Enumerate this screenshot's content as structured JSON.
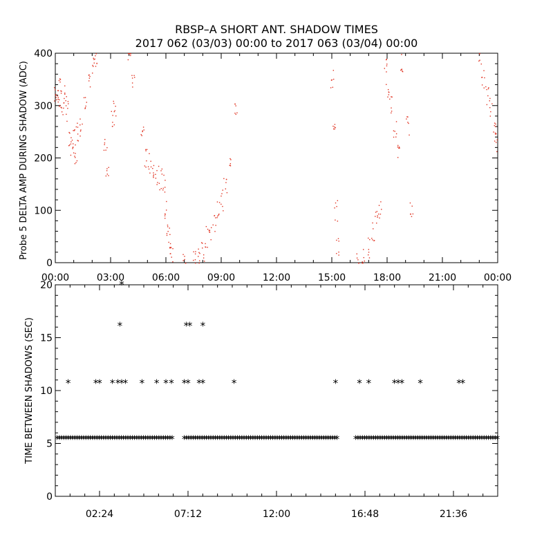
{
  "header": {
    "title_line1": "RBSP–A SHORT ANT. SHADOW TIMES",
    "title_line2": "2017 062 (03/03) 00:00 to 2017 063 (03/04) 00:00"
  },
  "colors": {
    "top_points": "#e0301e",
    "bottom_points": "#000000",
    "axes": "#000000"
  },
  "chart_data": [
    {
      "type": "scatter",
      "title": "RBSP–A SHORT ANT. SHADOW TIMES",
      "xlabel": "",
      "ylabel": "Probe 5 DELTA AMP DURING SHADOW (ADC)",
      "xlim": [
        "00:00",
        "24:00"
      ],
      "ylim": [
        0,
        400
      ],
      "xticks": [
        "00:00",
        "03:00",
        "06:00",
        "09:00",
        "12:00",
        "15:00",
        "18:00",
        "21:00",
        "00:00"
      ],
      "yticks": [
        "0",
        "100",
        "200",
        "300",
        "400"
      ],
      "grid": false,
      "series": [
        {
          "description_x_hours_y_adc": "approximate clusters of red dots",
          "points": [
            [
              0.0,
              320
            ],
            [
              0.1,
              330
            ],
            [
              0.2,
              310
            ],
            [
              0.3,
              335
            ],
            [
              0.4,
              300
            ],
            [
              0.5,
              325
            ],
            [
              0.6,
              290
            ],
            [
              0.8,
              230
            ],
            [
              0.9,
              220
            ],
            [
              1.0,
              240
            ],
            [
              1.1,
              210
            ],
            [
              1.2,
              250
            ],
            [
              1.4,
              260
            ],
            [
              1.6,
              300
            ],
            [
              1.8,
              340
            ],
            [
              2.0,
              380
            ],
            [
              2.2,
              395
            ],
            [
              2.7,
              220
            ],
            [
              2.8,
              180
            ],
            [
              3.1,
              280
            ],
            [
              3.2,
              300
            ],
            [
              4.0,
              400
            ],
            [
              4.2,
              350
            ],
            [
              4.7,
              250
            ],
            [
              4.9,
              200
            ],
            [
              5.1,
              190
            ],
            [
              5.3,
              180
            ],
            [
              5.5,
              170
            ],
            [
              5.7,
              160
            ],
            [
              5.9,
              150
            ],
            [
              6.0,
              100
            ],
            [
              6.1,
              60
            ],
            [
              6.2,
              40
            ],
            [
              6.3,
              20
            ],
            [
              7.0,
              5
            ],
            [
              7.5,
              10
            ],
            [
              7.8,
              15
            ],
            [
              8.0,
              20
            ],
            [
              8.2,
              50
            ],
            [
              8.4,
              60
            ],
            [
              8.6,
              80
            ],
            [
              8.8,
              100
            ],
            [
              9.0,
              120
            ],
            [
              9.2,
              150
            ],
            [
              9.5,
              200
            ],
            [
              9.8,
              300
            ],
            [
              15.0,
              350
            ],
            [
              15.1,
              250
            ],
            [
              15.2,
              100
            ],
            [
              15.3,
              30
            ],
            [
              16.4,
              5
            ],
            [
              16.7,
              10
            ],
            [
              17.0,
              30
            ],
            [
              17.2,
              60
            ],
            [
              17.4,
              80
            ],
            [
              17.6,
              100
            ],
            [
              17.9,
              380
            ],
            [
              18.0,
              330
            ],
            [
              18.2,
              300
            ],
            [
              18.4,
              260
            ],
            [
              18.6,
              220
            ],
            [
              18.8,
              380
            ],
            [
              19.1,
              260
            ],
            [
              19.3,
              100
            ],
            [
              23.0,
              400
            ],
            [
              23.2,
              350
            ],
            [
              23.4,
              320
            ],
            [
              23.6,
              300
            ],
            [
              23.8,
              250
            ],
            [
              23.9,
              230
            ]
          ]
        }
      ]
    },
    {
      "type": "scatter",
      "title": "",
      "xlabel": "",
      "ylabel": "TIME BETWEEN SHADOWS (SEC)",
      "xlim": [
        "00:00",
        "24:00"
      ],
      "ylim": [
        0,
        20
      ],
      "xticks": [
        "02:24",
        "07:12",
        "12:00",
        "16:48",
        "21:36"
      ],
      "yticks": [
        "0",
        "5",
        "10",
        "15",
        "20"
      ],
      "grid": false,
      "marker": "*",
      "series": [
        {
          "name": "",
          "baseline_value": 5.4,
          "baseline_segments_hours": [
            [
              0.1,
              6.4
            ],
            [
              7.0,
              15.3
            ],
            [
              16.3,
              16.8
            ],
            [
              16.9,
              24.0
            ]
          ],
          "points": [
            [
              0.7,
              10.7
            ],
            [
              2.2,
              10.7
            ],
            [
              2.4,
              10.7
            ],
            [
              3.1,
              10.7
            ],
            [
              3.4,
              10.7
            ],
            [
              3.6,
              10.7
            ],
            [
              3.8,
              10.7
            ],
            [
              3.5,
              16.1
            ],
            [
              3.6,
              20.0
            ],
            [
              4.7,
              10.7
            ],
            [
              5.5,
              10.7
            ],
            [
              6.0,
              10.7
            ],
            [
              6.3,
              10.7
            ],
            [
              7.0,
              10.7
            ],
            [
              7.2,
              10.7
            ],
            [
              7.1,
              16.1
            ],
            [
              7.3,
              16.1
            ],
            [
              7.8,
              10.7
            ],
            [
              8.0,
              10.7
            ],
            [
              8.0,
              16.1
            ],
            [
              9.7,
              10.7
            ],
            [
              15.2,
              10.7
            ],
            [
              16.5,
              10.7
            ],
            [
              17.0,
              10.7
            ],
            [
              18.4,
              10.7
            ],
            [
              18.6,
              10.7
            ],
            [
              18.8,
              10.7
            ],
            [
              19.8,
              10.7
            ],
            [
              21.9,
              10.7
            ],
            [
              22.1,
              10.7
            ]
          ]
        }
      ]
    }
  ]
}
